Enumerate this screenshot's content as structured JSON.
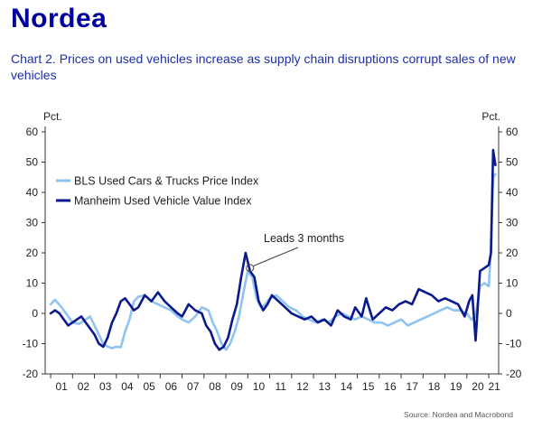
{
  "brand": {
    "logo_text": "Nordea"
  },
  "chart_data": {
    "type": "line",
    "title": "Chart 2. Prices on used vehicles increase as supply chain disruptions corrupt sales of new vehicles",
    "left_unit": "Pct.",
    "right_unit": "Pct.",
    "ylim": [
      -20,
      60
    ],
    "yticks": [
      -20,
      -10,
      0,
      10,
      20,
      30,
      40,
      50,
      60
    ],
    "xlim": [
      2000.75,
      2021.45
    ],
    "xtick_labels": [
      "01",
      "02",
      "03",
      "04",
      "05",
      "06",
      "07",
      "08",
      "09",
      "10",
      "11",
      "12",
      "13",
      "14",
      "15",
      "16",
      "17",
      "18",
      "19",
      "20",
      "21"
    ],
    "grid": false,
    "legend_position": "upper-left",
    "annotation": {
      "text": "Leads 3 months",
      "target": {
        "x": 2010.1,
        "y": 15
      }
    },
    "series": [
      {
        "name": "BLS Used Cars & Trucks Price Index",
        "color": "#8fc3f0",
        "points": [
          [
            2001.0,
            3
          ],
          [
            2001.2,
            4.5
          ],
          [
            2001.5,
            2
          ],
          [
            2001.8,
            -1
          ],
          [
            2002.0,
            -3
          ],
          [
            2002.3,
            -3.5
          ],
          [
            2002.6,
            -2
          ],
          [
            2002.8,
            -1
          ],
          [
            2003.0,
            -4
          ],
          [
            2003.2,
            -7
          ],
          [
            2003.4,
            -10
          ],
          [
            2003.6,
            -11
          ],
          [
            2003.8,
            -11.5
          ],
          [
            2004.0,
            -11
          ],
          [
            2004.2,
            -11.2
          ],
          [
            2004.4,
            -6
          ],
          [
            2004.6,
            -2
          ],
          [
            2004.8,
            4
          ],
          [
            2005.0,
            5.5
          ],
          [
            2005.3,
            6
          ],
          [
            2005.6,
            4
          ],
          [
            2005.9,
            3
          ],
          [
            2006.2,
            2
          ],
          [
            2006.5,
            1
          ],
          [
            2006.8,
            -1
          ],
          [
            2007.0,
            -2
          ],
          [
            2007.3,
            -3
          ],
          [
            2007.6,
            -1
          ],
          [
            2007.9,
            2
          ],
          [
            2008.2,
            1
          ],
          [
            2008.4,
            -3
          ],
          [
            2008.6,
            -6
          ],
          [
            2008.8,
            -10
          ],
          [
            2009.0,
            -12
          ],
          [
            2009.2,
            -10
          ],
          [
            2009.4,
            -6
          ],
          [
            2009.6,
            -1
          ],
          [
            2009.8,
            7
          ],
          [
            2010.0,
            14
          ],
          [
            2010.2,
            12
          ],
          [
            2010.4,
            5
          ],
          [
            2010.6,
            2
          ],
          [
            2010.8,
            3
          ],
          [
            2011.0,
            5
          ],
          [
            2011.3,
            6
          ],
          [
            2011.6,
            4
          ],
          [
            2011.9,
            2
          ],
          [
            2012.2,
            1
          ],
          [
            2012.5,
            -1
          ],
          [
            2012.8,
            -2
          ],
          [
            2013.1,
            -3
          ],
          [
            2013.4,
            -2
          ],
          [
            2013.7,
            -3
          ],
          [
            2014.0,
            -1
          ],
          [
            2014.3,
            0
          ],
          [
            2014.6,
            -1
          ],
          [
            2014.9,
            -2
          ],
          [
            2015.2,
            -1
          ],
          [
            2015.5,
            -2
          ],
          [
            2015.8,
            -3
          ],
          [
            2016.1,
            -3
          ],
          [
            2016.4,
            -4
          ],
          [
            2016.7,
            -3
          ],
          [
            2017.0,
            -2
          ],
          [
            2017.3,
            -4
          ],
          [
            2017.6,
            -3
          ],
          [
            2017.9,
            -2
          ],
          [
            2018.2,
            -1
          ],
          [
            2018.5,
            0
          ],
          [
            2018.8,
            1
          ],
          [
            2019.1,
            2
          ],
          [
            2019.4,
            1
          ],
          [
            2019.7,
            1
          ],
          [
            2020.0,
            0
          ],
          [
            2020.2,
            -2
          ],
          [
            2020.4,
            -1
          ],
          [
            2020.6,
            9
          ],
          [
            2020.8,
            10
          ],
          [
            2021.0,
            9
          ],
          [
            2021.1,
            21
          ],
          [
            2021.2,
            45
          ],
          [
            2021.3,
            46
          ]
        ]
      },
      {
        "name": "Manheim Used Vehicle Value Index",
        "color": "#0a1a8c",
        "points": [
          [
            2001.0,
            0
          ],
          [
            2001.2,
            1
          ],
          [
            2001.4,
            0
          ],
          [
            2001.6,
            -2
          ],
          [
            2001.8,
            -4
          ],
          [
            2002.0,
            -3
          ],
          [
            2002.2,
            -2
          ],
          [
            2002.4,
            -1
          ],
          [
            2002.6,
            -3
          ],
          [
            2002.8,
            -5
          ],
          [
            2003.0,
            -7
          ],
          [
            2003.2,
            -10
          ],
          [
            2003.4,
            -11
          ],
          [
            2003.6,
            -8
          ],
          [
            2003.8,
            -3
          ],
          [
            2004.0,
            0
          ],
          [
            2004.2,
            4
          ],
          [
            2004.4,
            5
          ],
          [
            2004.6,
            3
          ],
          [
            2004.8,
            1
          ],
          [
            2005.0,
            2
          ],
          [
            2005.3,
            6
          ],
          [
            2005.6,
            4
          ],
          [
            2005.9,
            7
          ],
          [
            2006.2,
            4
          ],
          [
            2006.5,
            2
          ],
          [
            2006.8,
            0
          ],
          [
            2007.0,
            -1
          ],
          [
            2007.3,
            3
          ],
          [
            2007.6,
            1
          ],
          [
            2007.9,
            0
          ],
          [
            2008.1,
            -4
          ],
          [
            2008.3,
            -6
          ],
          [
            2008.5,
            -10
          ],
          [
            2008.7,
            -12
          ],
          [
            2008.9,
            -11
          ],
          [
            2009.1,
            -8
          ],
          [
            2009.3,
            -2
          ],
          [
            2009.5,
            3
          ],
          [
            2009.7,
            12
          ],
          [
            2009.9,
            20
          ],
          [
            2010.1,
            14
          ],
          [
            2010.3,
            12
          ],
          [
            2010.5,
            4
          ],
          [
            2010.7,
            1
          ],
          [
            2010.9,
            3
          ],
          [
            2011.1,
            6
          ],
          [
            2011.4,
            4
          ],
          [
            2011.7,
            2
          ],
          [
            2012.0,
            0
          ],
          [
            2012.3,
            -1
          ],
          [
            2012.6,
            -2
          ],
          [
            2012.9,
            -1
          ],
          [
            2013.2,
            -3
          ],
          [
            2013.5,
            -2
          ],
          [
            2013.8,
            -4
          ],
          [
            2014.1,
            1
          ],
          [
            2014.4,
            -1
          ],
          [
            2014.7,
            -2
          ],
          [
            2014.9,
            2
          ],
          [
            2015.2,
            -1
          ],
          [
            2015.4,
            5
          ],
          [
            2015.7,
            -2
          ],
          [
            2016.0,
            0
          ],
          [
            2016.3,
            2
          ],
          [
            2016.6,
            1
          ],
          [
            2016.9,
            3
          ],
          [
            2017.2,
            4
          ],
          [
            2017.5,
            3
          ],
          [
            2017.8,
            8
          ],
          [
            2018.1,
            7
          ],
          [
            2018.4,
            6
          ],
          [
            2018.7,
            4
          ],
          [
            2019.0,
            5
          ],
          [
            2019.3,
            4
          ],
          [
            2019.6,
            3
          ],
          [
            2019.9,
            -1
          ],
          [
            2020.1,
            4
          ],
          [
            2020.25,
            6
          ],
          [
            2020.4,
            -9
          ],
          [
            2020.6,
            14
          ],
          [
            2020.8,
            15
          ],
          [
            2021.0,
            16
          ],
          [
            2021.1,
            20
          ],
          [
            2021.2,
            54
          ],
          [
            2021.3,
            49
          ]
        ]
      }
    ]
  },
  "source_text": "Source: Nordea and Macrobond"
}
